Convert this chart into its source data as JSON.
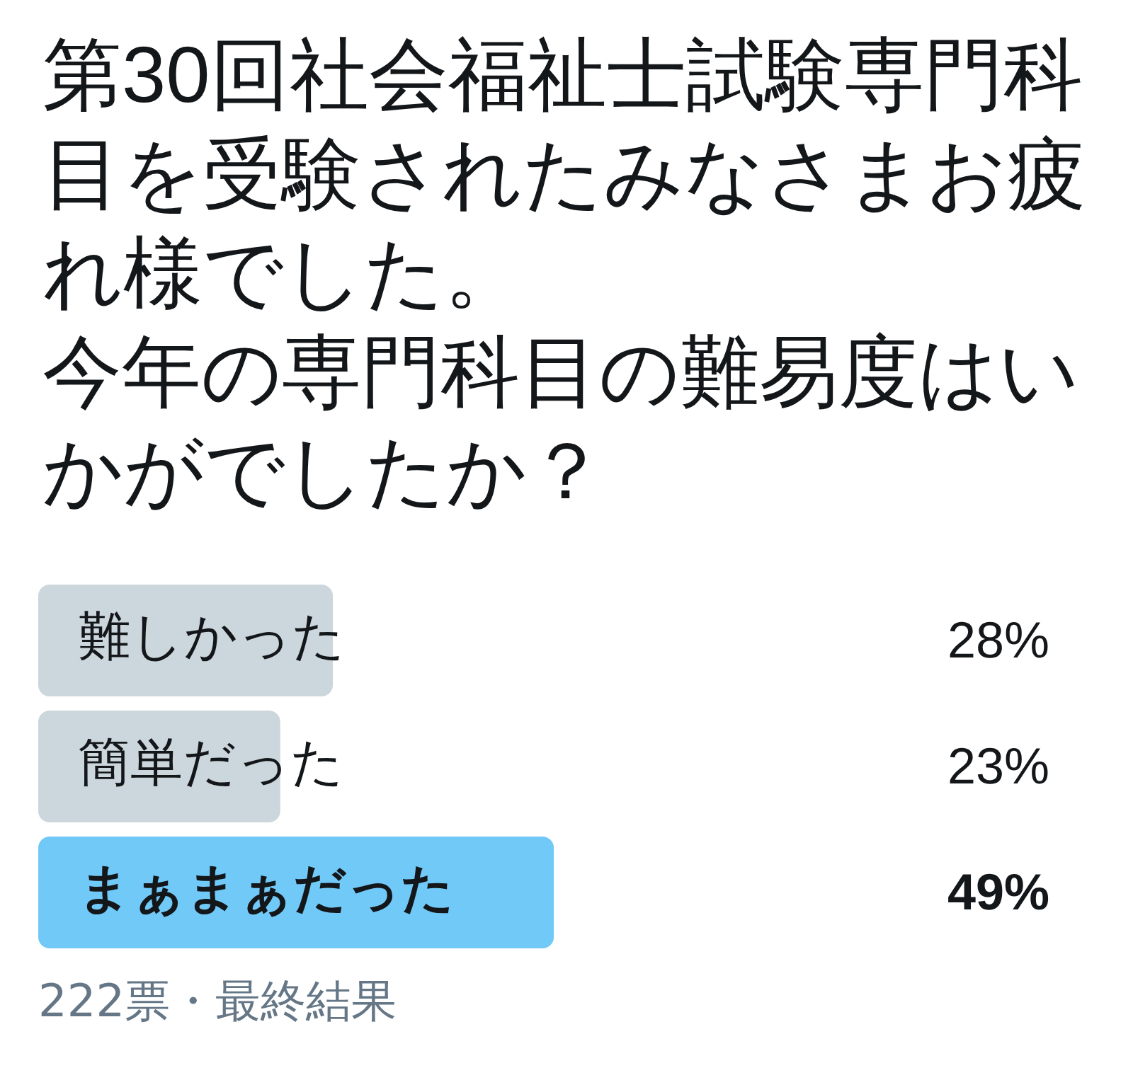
{
  "chart_data": {
    "type": "bar",
    "orientation": "horizontal",
    "title": "第30回社会福祉士試験専門科目を受験されたみなさまお疲れ様でした。今年の専門科目の難易度はいかがでしたか？",
    "categories": [
      "難しかった",
      "簡単だった",
      "まぁまぁだった"
    ],
    "values": [
      28,
      23,
      49
    ],
    "colors": [
      "#ccd6dd",
      "#ccd6dd",
      "#71c9f8"
    ],
    "value_labels": [
      "28%",
      "23%",
      "49%"
    ],
    "tick_labels": "y",
    "annotations": [
      "222票・最終結果"
    ]
  }
}
